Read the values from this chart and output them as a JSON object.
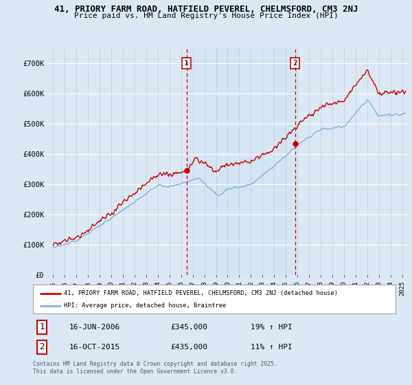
{
  "title_line1": "41, PRIORY FARM ROAD, HATFIELD PEVEREL, CHELMSFORD, CM3 2NJ",
  "title_line2": "Price paid vs. HM Land Registry's House Price Index (HPI)",
  "background_color": "#dce9f5",
  "plot_bg_color": "#dce9f5",
  "shade_color": "#c8dff0",
  "red_line_color": "#cc0000",
  "blue_line_color": "#7fb4d8",
  "vline_color": "#cc0000",
  "grid_color": "#ffffff",
  "ylim": [
    0,
    750000
  ],
  "yticks": [
    0,
    100000,
    200000,
    300000,
    400000,
    500000,
    600000,
    700000
  ],
  "ytick_labels": [
    "£0",
    "£100K",
    "£200K",
    "£300K",
    "£400K",
    "£500K",
    "£600K",
    "£700K"
  ],
  "xlim_start": 1994.5,
  "xlim_end": 2025.5,
  "transaction1_x": 2006.46,
  "transaction1_y": 345000,
  "transaction1_label": "1",
  "transaction1_date": "16-JUN-2006",
  "transaction1_price": "£345,000",
  "transaction1_hpi": "19% ↑ HPI",
  "transaction2_x": 2015.79,
  "transaction2_y": 435000,
  "transaction2_label": "2",
  "transaction2_date": "16-OCT-2015",
  "transaction2_price": "£435,000",
  "transaction2_hpi": "11% ↑ HPI",
  "legend_label_red": "41, PRIORY FARM ROAD, HATFIELD PEVEREL, CHELMSFORD, CM3 2NJ (detached house)",
  "legend_label_blue": "HPI: Average price, detached house, Braintree",
  "footer": "Contains HM Land Registry data © Crown copyright and database right 2025.\nThis data is licensed under the Open Government Licence v3.0.",
  "xtick_years": [
    1995,
    1996,
    1997,
    1998,
    1999,
    2000,
    2001,
    2002,
    2003,
    2004,
    2005,
    2006,
    2007,
    2008,
    2009,
    2010,
    2011,
    2012,
    2013,
    2014,
    2015,
    2016,
    2017,
    2018,
    2019,
    2020,
    2021,
    2022,
    2023,
    2024,
    2025
  ]
}
